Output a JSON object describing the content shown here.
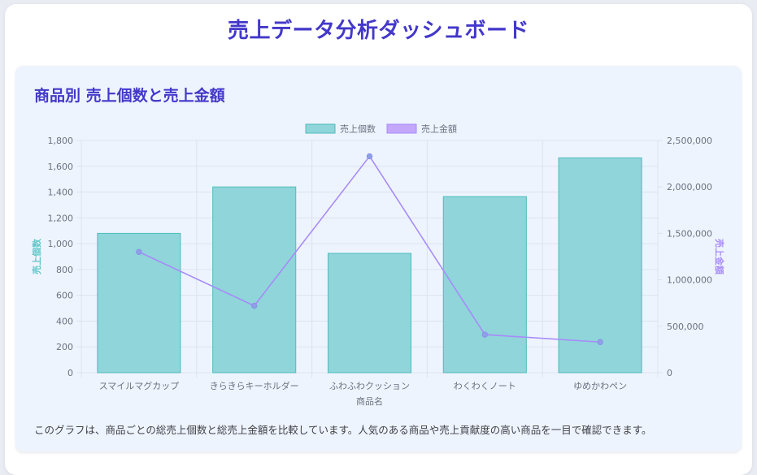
{
  "page": {
    "title": "売上データ分析ダッシュボード"
  },
  "card": {
    "title": "商品別 売上個数と売上金額",
    "description": "このグラフは、商品ごとの総売上個数と総売上金額を比較しています。人気のある商品や売上貢献度の高い商品を一目で確認できます。"
  },
  "colors": {
    "bar_fill": "#8fd5d9",
    "bar_stroke": "#4fbcbf",
    "line": "#a78bfa",
    "title": "#4338ca"
  },
  "chart_data": {
    "type": "bar",
    "categories": [
      "スマイルマグカップ",
      "きらきらキーホルダー",
      "ふわふわクッション",
      "わくわくノート",
      "ゆめかわペン"
    ],
    "xlabel": "商品名",
    "legend_position": "top",
    "grid": true,
    "series": [
      {
        "name": "売上個数",
        "type": "bar",
        "axis": "left",
        "values": [
          1080,
          1440,
          925,
          1365,
          1665
        ]
      },
      {
        "name": "売上金額",
        "type": "line",
        "axis": "right",
        "values": [
          1300000,
          720000,
          2330000,
          410000,
          330000
        ]
      }
    ],
    "y_left": {
      "label": "売上個数",
      "range": [
        0,
        1800
      ],
      "ticks": [
        "0",
        "200",
        "400",
        "600",
        "800",
        "1,000",
        "1,200",
        "1,400",
        "1,600",
        "1,800"
      ]
    },
    "y_right": {
      "label": "売上金額",
      "range": [
        0,
        2500000
      ],
      "ticks": [
        "0",
        "500,000",
        "1,000,000",
        "1,500,000",
        "2,000,000",
        "2,500,000"
      ]
    }
  }
}
